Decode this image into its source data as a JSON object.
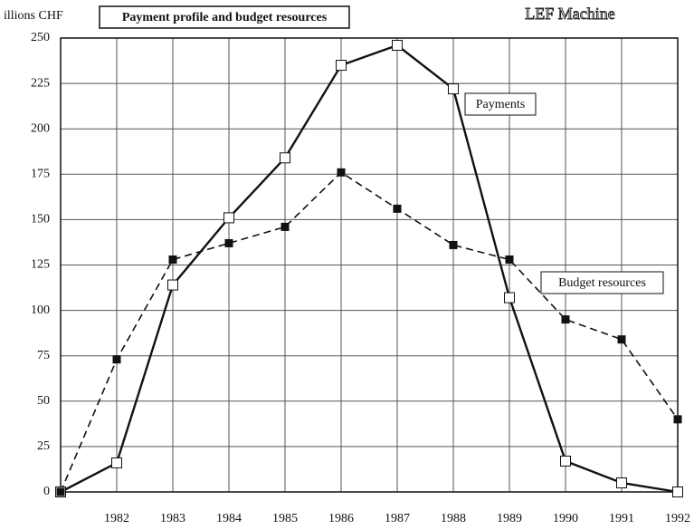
{
  "chart_data": {
    "type": "line",
    "title": "Payment profile and budget resources",
    "subtitle": "LEF Machine",
    "y_label": "illions CHF",
    "annotations": [
      "Payments",
      "Budget resources"
    ],
    "x": [
      1981,
      1982,
      1983,
      1984,
      1985,
      1986,
      1987,
      1988,
      1989,
      1990,
      1991,
      1992
    ],
    "series": [
      {
        "name": "Payments",
        "color": "#111111",
        "style": "solid",
        "marker": "open",
        "values": [
          0,
          16,
          114,
          151,
          184,
          235,
          246,
          222,
          107,
          17,
          5,
          0
        ]
      },
      {
        "name": "Budget resources",
        "color": "#111111",
        "style": "dashed",
        "marker": "filled",
        "values": [
          0,
          73,
          128,
          137,
          146,
          176,
          156,
          136,
          128,
          95,
          84,
          40
        ]
      }
    ],
    "xlim": [
      1981,
      1992
    ],
    "xticks": [
      1982,
      1983,
      1984,
      1985,
      1986,
      1987,
      1988,
      1989,
      1990,
      1991,
      1992
    ],
    "ylim": [
      0,
      250
    ],
    "yticks": [
      0,
      25,
      50,
      75,
      100,
      125,
      150,
      175,
      200,
      225,
      250
    ],
    "grid": true
  }
}
